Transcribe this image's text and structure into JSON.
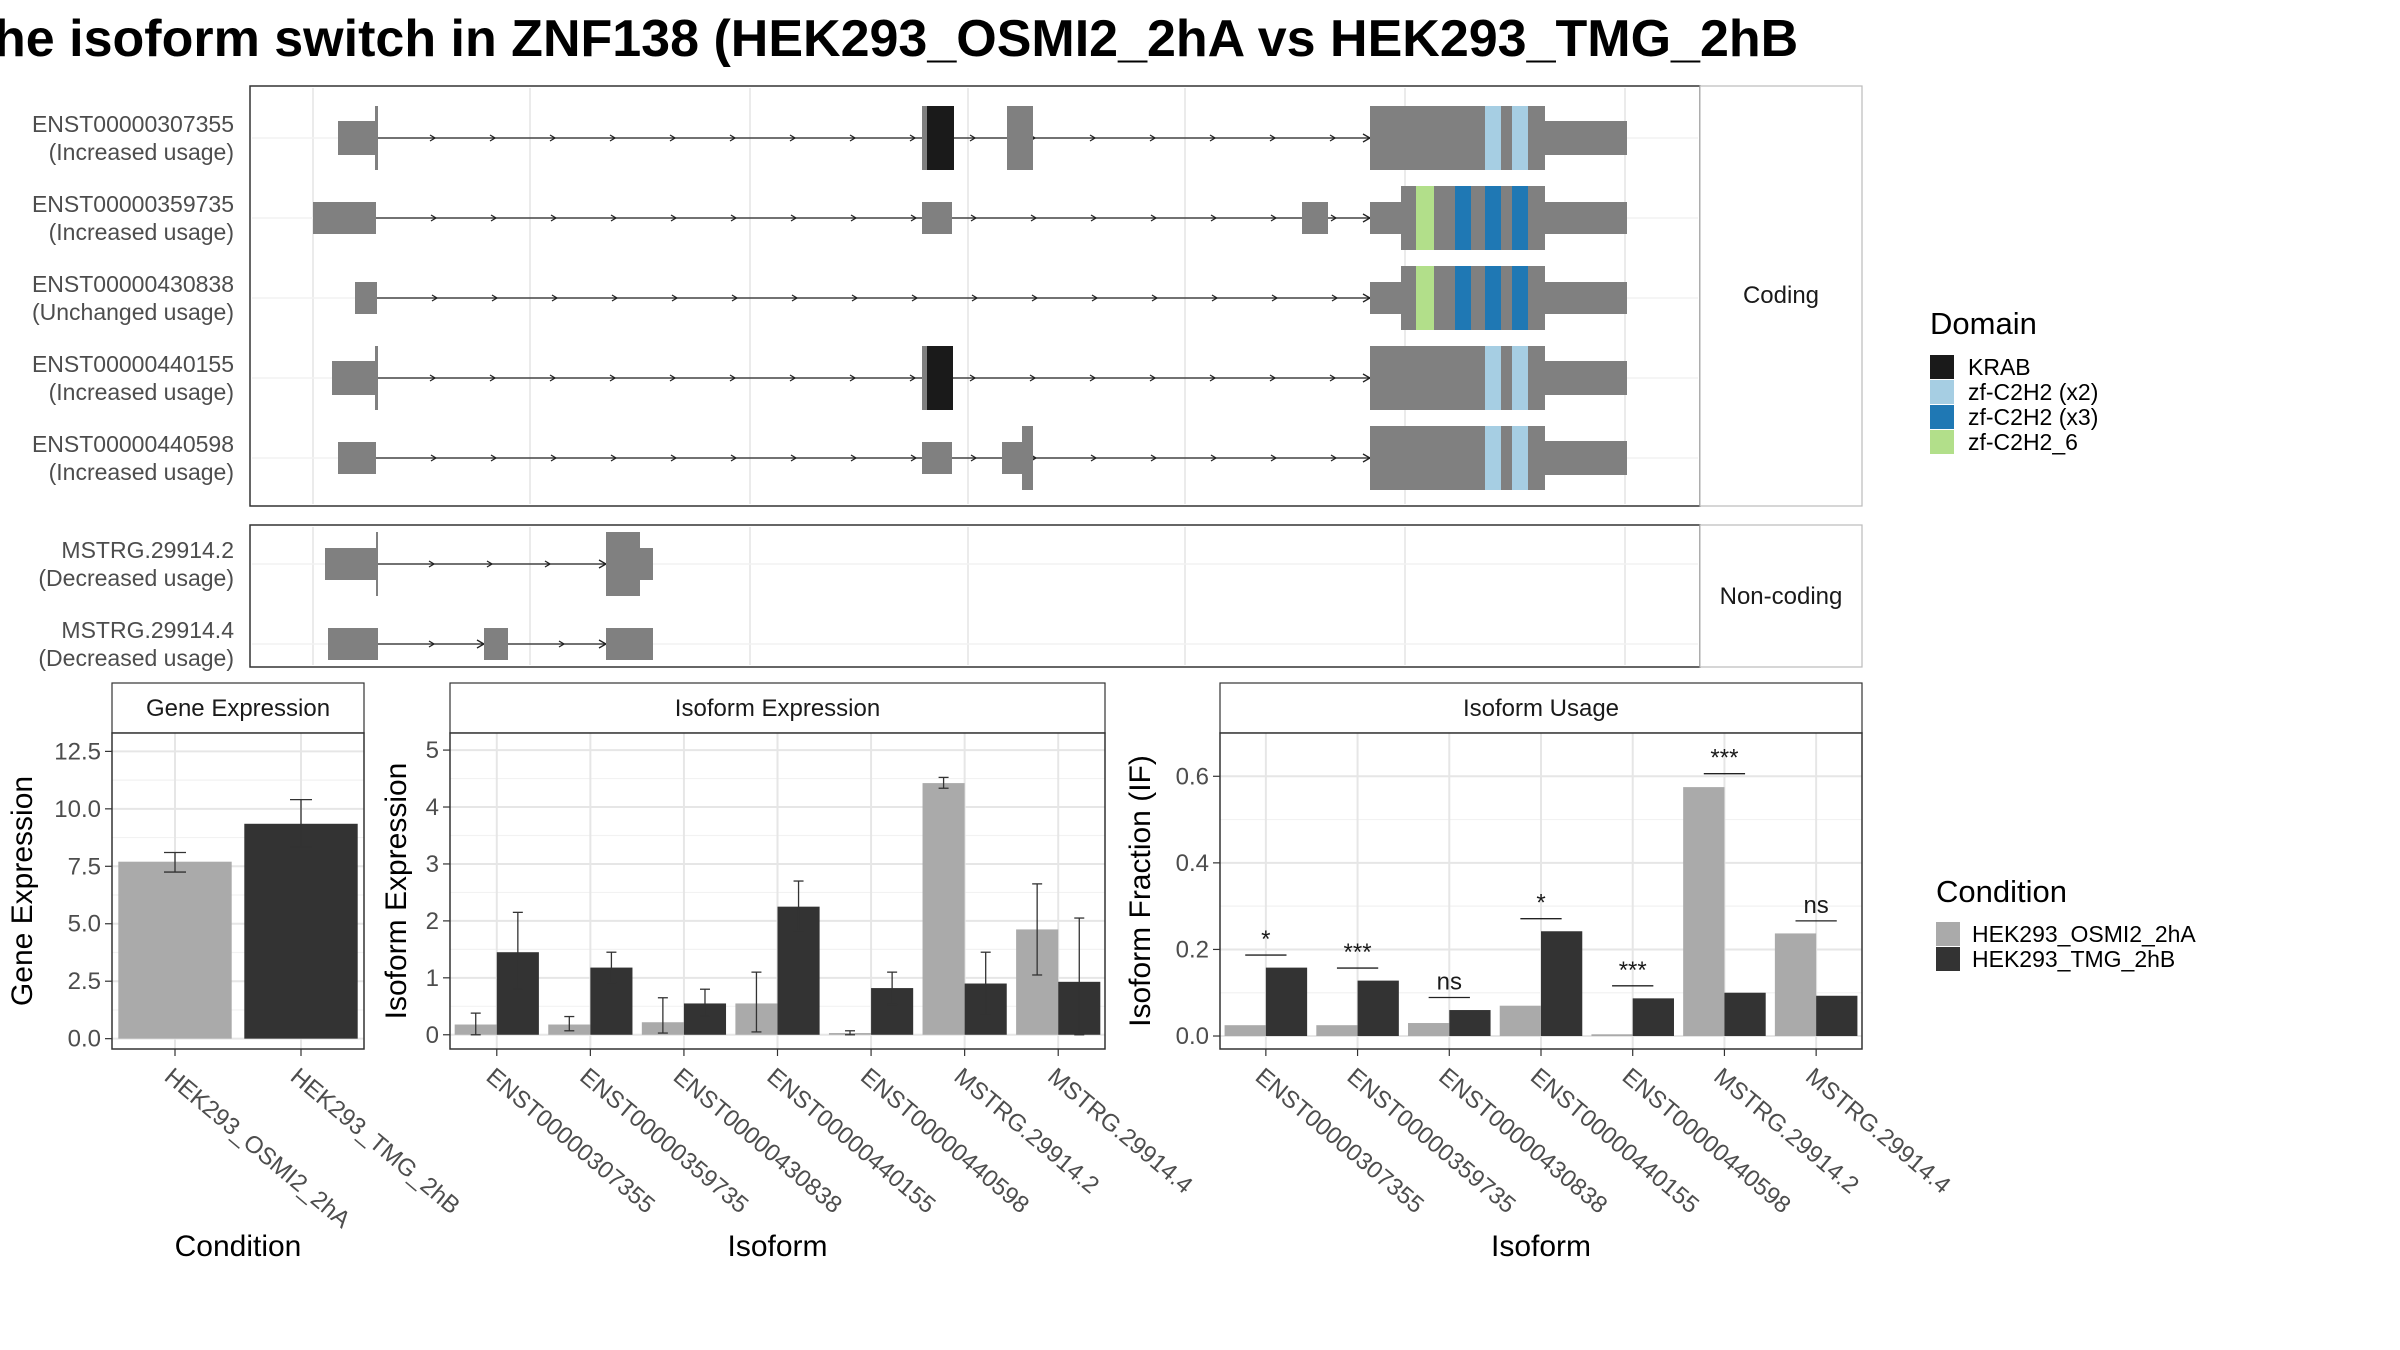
{
  "title": "he isoform switch in ZNF138 (HEK293_OSMI2_2hA vs HEK293_TMG_2hB",
  "colors": {
    "exon": "#808080",
    "KRAB": "#1a1a1a",
    "zf_x2": "#a6cee3",
    "zf_x3": "#1f78b4",
    "zf_6": "#b2df8a",
    "cond_a": "#aaaaaa",
    "cond_b": "#333333"
  },
  "domain_legend": {
    "title": "Domain",
    "items": [
      {
        "label": "KRAB",
        "color": "#1a1a1a"
      },
      {
        "label": "zf-C2H2 (x2)",
        "color": "#a6cee3"
      },
      {
        "label": "zf-C2H2 (x3)",
        "color": "#1f78b4"
      },
      {
        "label": "zf-C2H2_6",
        "color": "#b2df8a"
      }
    ]
  },
  "condition_legend": {
    "title": "Condition",
    "items": [
      {
        "label": "HEK293_OSMI2_2hA",
        "color": "#aaaaaa"
      },
      {
        "label": "HEK293_TMG_2hB",
        "color": "#333333"
      }
    ]
  },
  "structure": {
    "coding_label": "Coding",
    "noncoding_label": "Non-coding",
    "coding": [
      {
        "id": "ENST00000307355",
        "usage": "(Increased usage)"
      },
      {
        "id": "ENST00000359735",
        "usage": "(Increased usage)"
      },
      {
        "id": "ENST00000430838",
        "usage": "(Unchanged usage)"
      },
      {
        "id": "ENST00000440155",
        "usage": "(Increased usage)"
      },
      {
        "id": "ENST00000440598",
        "usage": "(Increased usage)"
      }
    ],
    "noncoding": [
      {
        "id": "MSTRG.29914.2",
        "usage": "(Decreased usage)"
      },
      {
        "id": "MSTRG.29914.4",
        "usage": "(Decreased usage)"
      }
    ]
  },
  "chart_data": [
    {
      "type": "bar",
      "title": "Gene Expression",
      "xlabel": "Condition",
      "ylabel": "Gene Expression",
      "categories": [
        "HEK293_OSMI2_2hA",
        "HEK293_TMG_2hB"
      ],
      "values": [
        7.7,
        9.35
      ],
      "errors": [
        [
          7.25,
          8.1
        ],
        [
          8.35,
          10.4
        ]
      ],
      "yticks": [
        "0.0",
        "2.5",
        "5.0",
        "7.5",
        "10.0",
        "12.5"
      ],
      "ylim": [
        -0.45,
        13.3
      ]
    },
    {
      "type": "bar",
      "title": "Isoform Expression",
      "xlabel": "Isoform",
      "ylabel": "Isoform Expression",
      "categories": [
        "ENST00000307355",
        "ENST00000359735",
        "ENST00000430838",
        "ENST00000440155",
        "ENST00000440598",
        "MSTRG.29914.2",
        "MSTRG.29914.4"
      ],
      "series": [
        {
          "name": "HEK293_OSMI2_2hA",
          "values": [
            0.18,
            0.18,
            0.22,
            0.55,
            0.03,
            4.42,
            1.85
          ]
        },
        {
          "name": "HEK293_TMG_2hB",
          "values": [
            1.45,
            1.18,
            0.55,
            2.25,
            0.82,
            0.9,
            0.93
          ]
        }
      ],
      "errors": [
        [
          [
            0,
            0.38
          ],
          [
            0.07,
            0.32
          ],
          [
            0.03,
            0.65
          ],
          [
            0.05,
            1.1
          ],
          [
            0,
            0.07
          ],
          [
            4.33,
            4.52
          ],
          [
            1.05,
            2.65
          ]
        ],
        [
          [
            0.8,
            2.15
          ],
          [
            0.92,
            1.45
          ],
          [
            0.33,
            0.8
          ],
          [
            1.82,
            2.7
          ],
          [
            0.53,
            1.1
          ],
          [
            0.35,
            1.45
          ],
          [
            0,
            2.05
          ]
        ]
      ],
      "yticks": [
        "0",
        "1",
        "2",
        "3",
        "4",
        "5"
      ],
      "ylim": [
        -0.25,
        5.3
      ]
    },
    {
      "type": "bar",
      "title": "Isoform Usage",
      "xlabel": "Isoform",
      "ylabel": "Isoform Fraction (IF)",
      "categories": [
        "ENST00000307355",
        "ENST00000359735",
        "ENST00000430838",
        "ENST00000440155",
        "ENST00000440598",
        "MSTRG.29914.2",
        "MSTRG.29914.4"
      ],
      "series": [
        {
          "name": "HEK293_OSMI2_2hA",
          "values": [
            0.025,
            0.025,
            0.03,
            0.07,
            0.004,
            0.575,
            0.237
          ]
        },
        {
          "name": "HEK293_TMG_2hB",
          "values": [
            0.158,
            0.128,
            0.06,
            0.242,
            0.087,
            0.1,
            0.093
          ]
        }
      ],
      "significance": [
        "*",
        "***",
        "ns",
        "*",
        "***",
        "***",
        "ns"
      ],
      "sig_level": [
        0.187,
        0.157,
        0.089,
        0.271,
        0.116,
        0.606,
        0.266
      ],
      "yticks": [
        "0.0",
        "0.2",
        "0.4",
        "0.6"
      ],
      "ylim": [
        -0.03,
        0.7
      ]
    }
  ]
}
